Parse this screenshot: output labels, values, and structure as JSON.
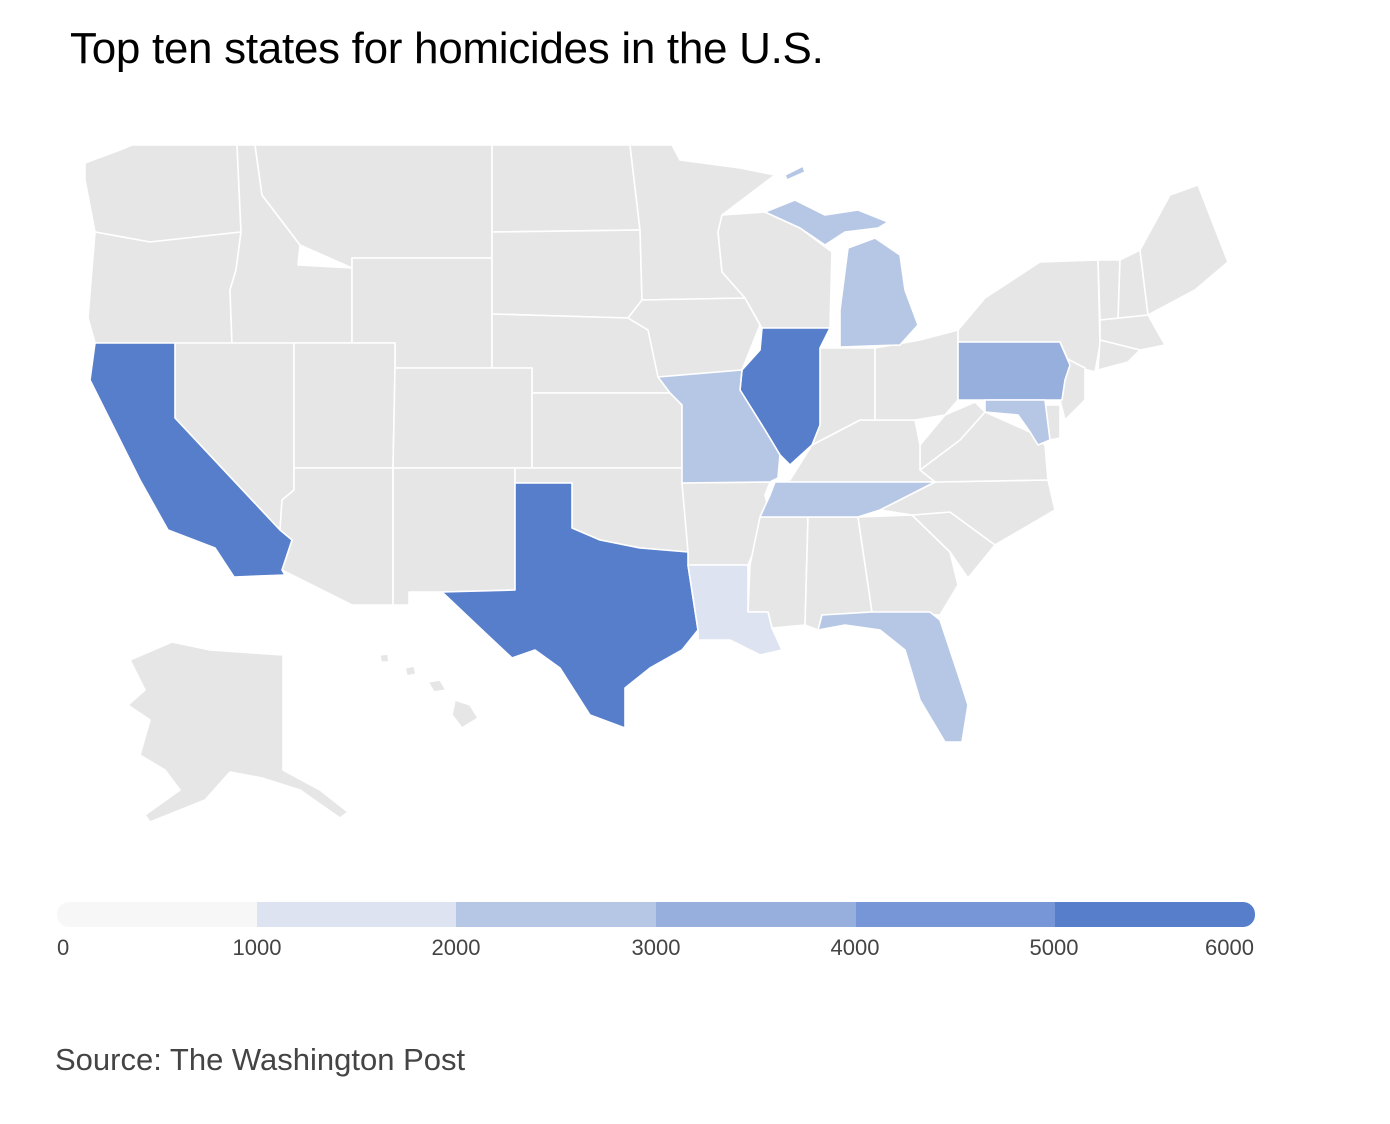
{
  "title": "Top ten states for homicides in the U.S.",
  "source": "Source: The Washington Post",
  "colors": {
    "no_data": "#e6e6e6",
    "border": "#ffffff",
    "scale": [
      "#f7f7f7",
      "#dde3f1",
      "#b6c7e6",
      "#97afdd",
      "#7796d7",
      "#567ecb"
    ]
  },
  "legend": {
    "ticks": [
      "0",
      "1000",
      "2000",
      "3000",
      "4000",
      "5000",
      "6000"
    ],
    "min": 0,
    "max": 6000,
    "step": 1000
  },
  "map_data": {
    "type": "choropleth",
    "region": "United States",
    "highlighted_states": [
      {
        "state": "California",
        "bucket": "5000-6000"
      },
      {
        "state": "Texas",
        "bucket": "5000-6000"
      },
      {
        "state": "Illinois",
        "bucket": "5000-6000"
      },
      {
        "state": "Pennsylvania",
        "bucket": "3000-4000"
      },
      {
        "state": "Michigan",
        "bucket": "2000-3000"
      },
      {
        "state": "Missouri",
        "bucket": "2000-3000"
      },
      {
        "state": "Tennessee",
        "bucket": "2000-3000"
      },
      {
        "state": "Florida",
        "bucket": "2000-3000"
      },
      {
        "state": "Maryland",
        "bucket": "2000-3000"
      },
      {
        "state": "Louisiana",
        "bucket": "1000-2000"
      }
    ]
  }
}
